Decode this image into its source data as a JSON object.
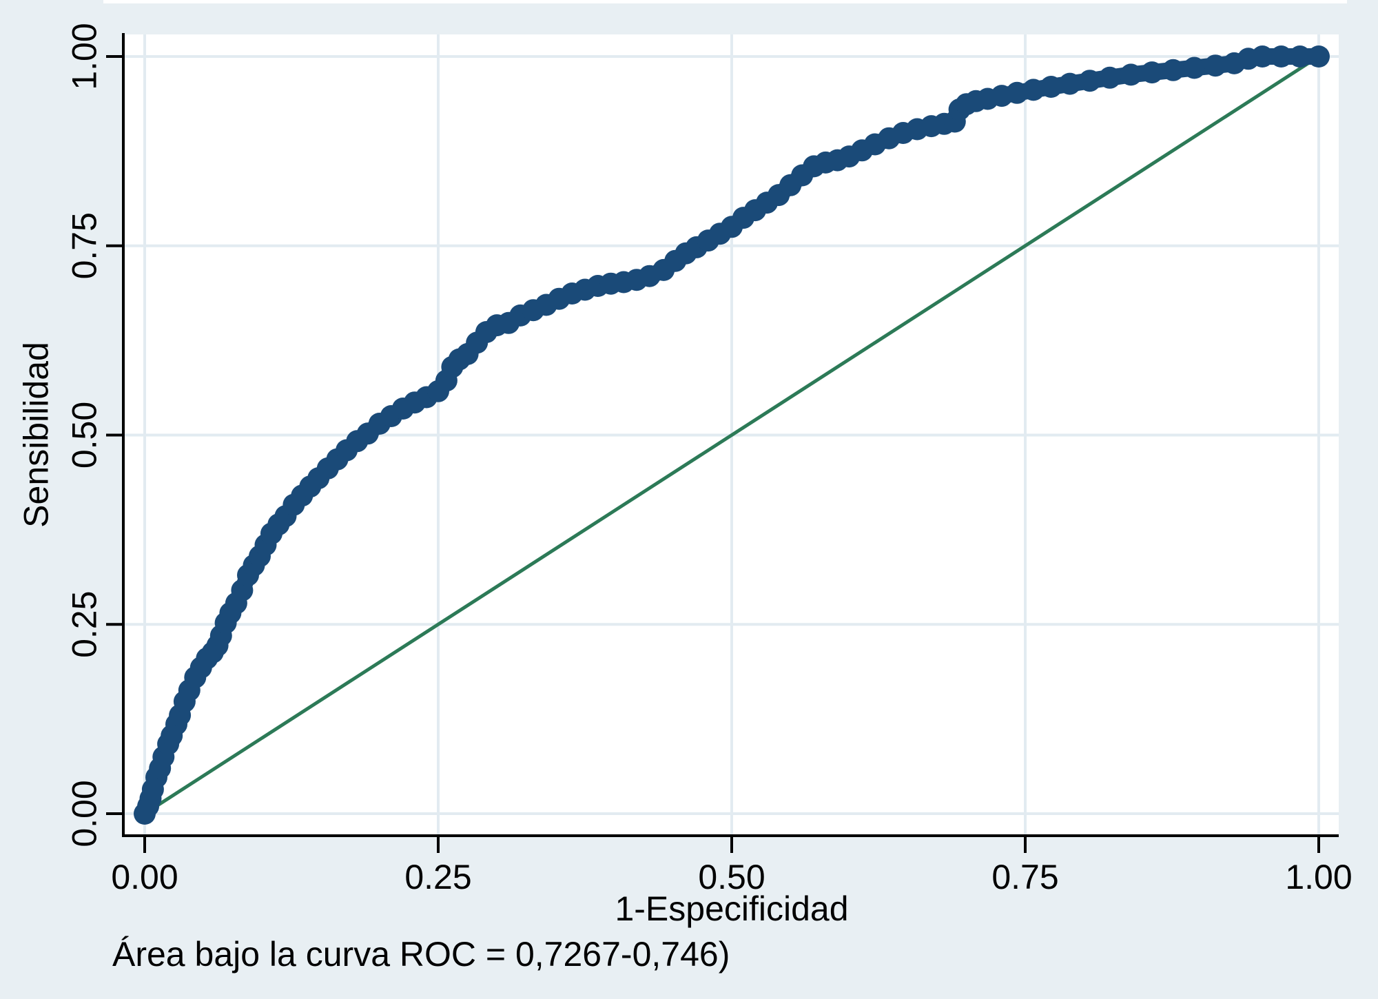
{
  "colors": {
    "background": "#e8eff3",
    "plot_background": "#ffffff",
    "grid": "#e2ebf1",
    "axis": "#000000",
    "roc": "#1a4a78",
    "reference": "#2c7a57",
    "text": "#000000"
  },
  "labels": {
    "x_title": "1-Especificidad",
    "y_title": "Sensibilidad",
    "caption": "Área bajo la curva ROC = 0,7267-0,746)"
  },
  "chart_data": {
    "type": "line",
    "title": "",
    "xlabel": "1-Especificidad",
    "ylabel": "Sensibilidad",
    "xlim": [
      0,
      1
    ],
    "ylim": [
      0,
      1
    ],
    "grid": true,
    "legend": "none",
    "annotation": "Área bajo la curva ROC = 0,7267-0,746)",
    "x_ticks": [
      {
        "value": 0.0,
        "label": "0.00"
      },
      {
        "value": 0.25,
        "label": "0.25"
      },
      {
        "value": 0.5,
        "label": "0.50"
      },
      {
        "value": 0.75,
        "label": "0.75"
      },
      {
        "value": 1.0,
        "label": "1.00"
      }
    ],
    "y_ticks": [
      {
        "value": 0.0,
        "label": "0.00"
      },
      {
        "value": 0.25,
        "label": "0.25"
      },
      {
        "value": 0.5,
        "label": "0.50"
      },
      {
        "value": 0.75,
        "label": "0.75"
      },
      {
        "value": 1.0,
        "label": "1.00"
      }
    ],
    "series": [
      {
        "name": "Curva ROC",
        "style": "line_with_markers",
        "color": "#1a4a78",
        "points": [
          [
            0.0,
            0.0
          ],
          [
            0.003,
            0.01
          ],
          [
            0.005,
            0.02
          ],
          [
            0.007,
            0.032
          ],
          [
            0.01,
            0.048
          ],
          [
            0.013,
            0.06
          ],
          [
            0.016,
            0.075
          ],
          [
            0.02,
            0.092
          ],
          [
            0.023,
            0.103
          ],
          [
            0.027,
            0.118
          ],
          [
            0.03,
            0.13
          ],
          [
            0.034,
            0.148
          ],
          [
            0.038,
            0.163
          ],
          [
            0.043,
            0.18
          ],
          [
            0.048,
            0.193
          ],
          [
            0.053,
            0.205
          ],
          [
            0.058,
            0.213
          ],
          [
            0.062,
            0.222
          ],
          [
            0.065,
            0.235
          ],
          [
            0.069,
            0.252
          ],
          [
            0.073,
            0.265
          ],
          [
            0.078,
            0.278
          ],
          [
            0.083,
            0.295
          ],
          [
            0.088,
            0.315
          ],
          [
            0.093,
            0.328
          ],
          [
            0.098,
            0.34
          ],
          [
            0.103,
            0.355
          ],
          [
            0.108,
            0.37
          ],
          [
            0.114,
            0.382
          ],
          [
            0.12,
            0.393
          ],
          [
            0.127,
            0.408
          ],
          [
            0.134,
            0.42
          ],
          [
            0.141,
            0.432
          ],
          [
            0.148,
            0.443
          ],
          [
            0.156,
            0.456
          ],
          [
            0.164,
            0.468
          ],
          [
            0.172,
            0.48
          ],
          [
            0.181,
            0.492
          ],
          [
            0.19,
            0.502
          ],
          [
            0.2,
            0.515
          ],
          [
            0.21,
            0.525
          ],
          [
            0.22,
            0.535
          ],
          [
            0.23,
            0.543
          ],
          [
            0.24,
            0.55
          ],
          [
            0.25,
            0.558
          ],
          [
            0.257,
            0.572
          ],
          [
            0.262,
            0.59
          ],
          [
            0.268,
            0.6
          ],
          [
            0.275,
            0.607
          ],
          [
            0.283,
            0.622
          ],
          [
            0.291,
            0.636
          ],
          [
            0.3,
            0.645
          ],
          [
            0.31,
            0.648
          ],
          [
            0.32,
            0.658
          ],
          [
            0.331,
            0.665
          ],
          [
            0.342,
            0.672
          ],
          [
            0.353,
            0.68
          ],
          [
            0.364,
            0.687
          ],
          [
            0.375,
            0.692
          ],
          [
            0.386,
            0.697
          ],
          [
            0.397,
            0.7
          ],
          [
            0.408,
            0.702
          ],
          [
            0.419,
            0.705
          ],
          [
            0.43,
            0.71
          ],
          [
            0.442,
            0.718
          ],
          [
            0.452,
            0.73
          ],
          [
            0.461,
            0.74
          ],
          [
            0.47,
            0.748
          ],
          [
            0.48,
            0.757
          ],
          [
            0.49,
            0.766
          ],
          [
            0.5,
            0.775
          ],
          [
            0.51,
            0.787
          ],
          [
            0.52,
            0.797
          ],
          [
            0.53,
            0.807
          ],
          [
            0.54,
            0.817
          ],
          [
            0.55,
            0.83
          ],
          [
            0.56,
            0.843
          ],
          [
            0.57,
            0.855
          ],
          [
            0.58,
            0.86
          ],
          [
            0.59,
            0.863
          ],
          [
            0.6,
            0.868
          ],
          [
            0.611,
            0.876
          ],
          [
            0.622,
            0.884
          ],
          [
            0.634,
            0.892
          ],
          [
            0.646,
            0.899
          ],
          [
            0.658,
            0.904
          ],
          [
            0.67,
            0.908
          ],
          [
            0.681,
            0.911
          ],
          [
            0.69,
            0.914
          ],
          [
            0.694,
            0.93
          ],
          [
            0.7,
            0.937
          ],
          [
            0.708,
            0.941
          ],
          [
            0.718,
            0.944
          ],
          [
            0.73,
            0.948
          ],
          [
            0.743,
            0.952
          ],
          [
            0.757,
            0.956
          ],
          [
            0.772,
            0.96
          ],
          [
            0.788,
            0.964
          ],
          [
            0.805,
            0.968
          ],
          [
            0.822,
            0.972
          ],
          [
            0.84,
            0.976
          ],
          [
            0.858,
            0.979
          ],
          [
            0.876,
            0.982
          ],
          [
            0.894,
            0.985
          ],
          [
            0.912,
            0.988
          ],
          [
            0.928,
            0.991
          ],
          [
            0.94,
            0.997
          ],
          [
            0.952,
            1.0
          ],
          [
            0.968,
            1.0
          ],
          [
            0.984,
            1.0
          ],
          [
            1.0,
            1.0
          ]
        ]
      },
      {
        "name": "Línea de referencia diagonal",
        "style": "line",
        "color": "#2c7a57",
        "points": [
          [
            0.0,
            0.0
          ],
          [
            1.0,
            1.0
          ]
        ]
      }
    ]
  }
}
